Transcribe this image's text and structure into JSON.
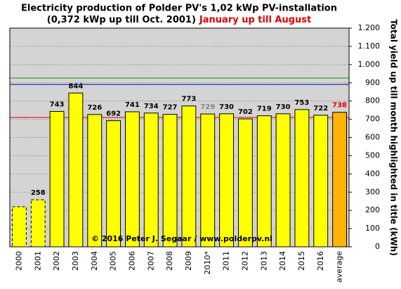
{
  "chart_data": {
    "type": "bar",
    "title": "Electricity production  of Polder PV's 1,02 kWp PV-installation",
    "subtitle": "(0,372 kWp up till Oct. 2001)",
    "subtitle_highlight": "January up till August",
    "y_axis_label": "Total yield up till month highlighted in title (kWh)",
    "annotation": "© 2016 Peter J. Segaar / www.polderpv.nl",
    "categories": [
      "2000",
      "2001",
      "2002",
      "2003",
      "2004",
      "2005",
      "2006",
      "2007",
      "2008",
      "2009",
      "2010*",
      "2011",
      "2012",
      "2013",
      "2014",
      "2015",
      "2016",
      "average"
    ],
    "values": [
      220,
      258,
      743,
      844,
      726,
      692,
      741,
      734,
      727,
      773,
      729,
      730,
      702,
      719,
      730,
      753,
      722,
      738
    ],
    "value_labels": [
      null,
      "258",
      "743",
      "844",
      "726",
      "692",
      "741",
      "734",
      "727",
      "773",
      "729",
      "730",
      "702",
      "719",
      "730",
      "753",
      "722",
      "738"
    ],
    "bar_colors": [
      "#ffff00",
      "#ffff00",
      "#ffff00",
      "#ffff00",
      "#ffff00",
      "#ffff00",
      "#ffff00",
      "#ffff00",
      "#ffff00",
      "#ffff00",
      "#ffff00",
      "#ffff00",
      "#ffff00",
      "#ffff00",
      "#ffff00",
      "#ffff00",
      "#ffff00",
      "#ffb400"
    ],
    "dashed": [
      true,
      true,
      false,
      false,
      false,
      false,
      false,
      false,
      false,
      false,
      false,
      false,
      false,
      false,
      false,
      false,
      false,
      false
    ],
    "label_colors": [
      "#000000",
      "#000000",
      "#000000",
      "#000000",
      "#000000",
      "#000000",
      "#000000",
      "#000000",
      "#000000",
      "#000000",
      "#888888",
      "#000000",
      "#000000",
      "#000000",
      "#000000",
      "#000000",
      "#000000",
      "#e00000"
    ],
    "reference_lines": [
      {
        "value": 926,
        "color": "#00a000"
      },
      {
        "value": 891,
        "color": "#0000c0"
      },
      {
        "value": 710,
        "color": "#e00000"
      }
    ],
    "ylim": [
      0,
      1200
    ],
    "yticks": [
      0,
      100,
      200,
      300,
      400,
      500,
      600,
      700,
      800,
      900,
      {
        "value": 1000,
        "label": "1.000"
      },
      {
        "value": 1100,
        "label": "1.100"
      },
      {
        "value": 1200,
        "label": "1.200"
      }
    ],
    "y_axis_side": "right",
    "grid": true
  }
}
